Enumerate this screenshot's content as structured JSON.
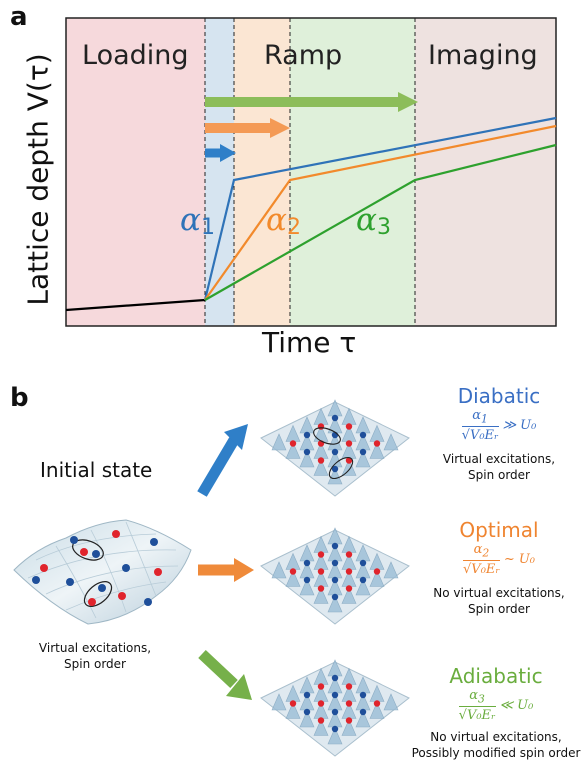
{
  "panel_a": {
    "letter": "a",
    "phases": {
      "loading": "Loading",
      "ramp": "Ramp",
      "imaging": "Imaging"
    },
    "ylabel": "Lattice depth V(τ)",
    "xlabel": "Time τ",
    "alphas": [
      {
        "symbol": "α",
        "sub": "1",
        "color": "#2f73b8"
      },
      {
        "symbol": "α",
        "sub": "2",
        "color": "#f28a2c"
      },
      {
        "symbol": "α",
        "sub": "3",
        "color": "#2ea12e"
      }
    ],
    "colors": {
      "loading_bg": "#f6d9dc",
      "ramp1_bg": "#d6e4f0",
      "ramp2_bg": "#fbe6d3",
      "ramp3_bg": "#dff0da",
      "imaging_bg": "#eee2e0",
      "blue": "#2f73b8",
      "orange": "#f28a2c",
      "green": "#2ea12e"
    }
  },
  "panel_b": {
    "letter": "b",
    "initial_label": "Initial state",
    "initial_caption": [
      "Virtual excitations,",
      "Spin order"
    ],
    "regimes": [
      {
        "title": "Diabatic",
        "color": "#3a6fc4",
        "alpha": "α",
        "alpha_sub": "1",
        "denominator": "√V₀Eᵣ",
        "relation": "≫",
        "rhs": "U₀",
        "caption": [
          "Virtual excitations,",
          "Spin order"
        ]
      },
      {
        "title": "Optimal",
        "color": "#ef8430",
        "alpha": "α",
        "alpha_sub": "2",
        "denominator": "√V₀Eᵣ",
        "relation": "~",
        "rhs": "U₀",
        "caption": [
          "No virtual excitations,",
          "Spin order"
        ]
      },
      {
        "title": "Adiabatic",
        "color": "#6aad3e",
        "alpha": "α",
        "alpha_sub": "3",
        "denominator": "√V₀Eᵣ",
        "relation": "≪",
        "rhs": "U₀",
        "caption": [
          "No virtual excitations,",
          "Possibly modified spin order"
        ]
      }
    ],
    "arrow_colors": [
      "#2f7fc8",
      "#ef8a3a",
      "#76b04a"
    ],
    "atom_colors": {
      "red": "#e0242c",
      "blue": "#1f4f9a"
    }
  }
}
